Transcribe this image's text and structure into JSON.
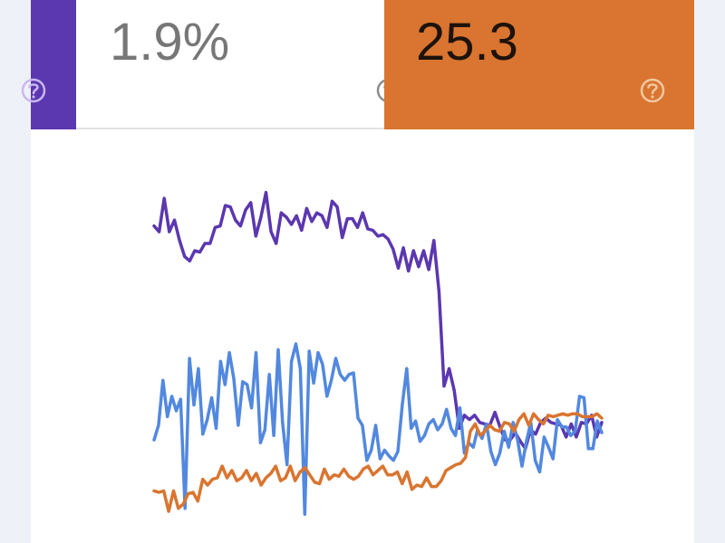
{
  "metrics": [
    {
      "value": "",
      "color": "#5b37b0",
      "icon": "help-circle-icon"
    },
    {
      "value": "1.9%",
      "color": "#ffffff",
      "icon": "help-circle-icon"
    },
    {
      "value": "25.3",
      "color": "#d97530",
      "icon": "help-circle-icon"
    }
  ],
  "chart_data": {
    "type": "line",
    "title": "",
    "xlabel": "",
    "ylabel": "",
    "grid": false,
    "legend": "none",
    "series": [
      {
        "color": "#5b37b0",
        "values": [
          81,
          77,
          100,
          77,
          85,
          71,
          60,
          57,
          64,
          63,
          69,
          69,
          80,
          81,
          95,
          94,
          85,
          81,
          92,
          97,
          74,
          87,
          104,
          77,
          69,
          90,
          87,
          82,
          88,
          78,
          93,
          84,
          90,
          88,
          80,
          98,
          94,
          73,
          86,
          86,
          80,
          90,
          79,
          78,
          74,
          75,
          72,
          65,
          52,
          66,
          50,
          64,
          53,
          64,
          51,
          71,
          36,
          -29,
          -17,
          -32,
          -58,
          -49,
          -52,
          -49,
          -54,
          -55,
          -56,
          -47,
          -57,
          -66,
          -66,
          -61,
          -67,
          -72,
          -59,
          -62,
          -54,
          -51,
          -54,
          -55,
          -56,
          -64,
          -55,
          -64,
          -54,
          -55,
          -49,
          -64,
          -54
        ]
      },
      {
        "color": "#5288df",
        "values": [
          -66,
          -56,
          -25,
          -50,
          -36,
          -46,
          -38,
          -113,
          -10,
          -42,
          -17,
          -62,
          -52,
          -37,
          -58,
          -12,
          -28,
          -6,
          -24,
          -56,
          -26,
          -28,
          -44,
          -6,
          -68,
          -59,
          -21,
          -63,
          -4,
          -54,
          -83,
          -12,
          0,
          -17,
          -117,
          -5,
          -27,
          -6,
          -14,
          -36,
          -25,
          -10,
          -21,
          -25,
          -21,
          -20,
          -51,
          -56,
          -80,
          -73,
          -56,
          -79,
          -73,
          -77,
          -80,
          -74,
          -42,
          -17,
          -58,
          -53,
          -67,
          -63,
          -55,
          -52,
          -59,
          -55,
          -45,
          -58,
          -63,
          -44,
          -75,
          -68,
          -71,
          -59,
          -65,
          -55,
          -74,
          -83,
          -75,
          -60,
          -71,
          -54,
          -66,
          -84,
          -67,
          -54,
          -80,
          -88,
          -64,
          -71,
          -79,
          -52,
          -57,
          -57,
          -63,
          -60,
          -36,
          -37,
          -72,
          -72,
          -53,
          -61
        ]
      },
      {
        "color": "#d97530",
        "values": [
          -101,
          -102,
          -101,
          -115,
          -101,
          -113,
          -110,
          -103,
          -102,
          -108,
          -93,
          -97,
          -93,
          -92,
          -84,
          -92,
          -87,
          -94,
          -92,
          -87,
          -94,
          -89,
          -97,
          -92,
          -89,
          -84,
          -94,
          -92,
          -84,
          -94,
          -88,
          -85,
          -90,
          -95,
          -96,
          -86,
          -93,
          -90,
          -91,
          -86,
          -91,
          -93,
          -91,
          -86,
          -84,
          -90,
          -87,
          -84,
          -90,
          -90,
          -88,
          -96,
          -88,
          -100,
          -97,
          -98,
          -92,
          -98,
          -98,
          -94,
          -87,
          -85,
          -83,
          -82,
          -78,
          -60,
          -55,
          -63,
          -60,
          -56,
          -59,
          -60,
          -54,
          -55,
          -60,
          -52,
          -48,
          -56,
          -48,
          -52,
          -55,
          -49,
          -50,
          -49,
          -48,
          -49,
          -48,
          -48,
          -50,
          -50,
          -50,
          -48,
          -51
        ]
      }
    ]
  }
}
